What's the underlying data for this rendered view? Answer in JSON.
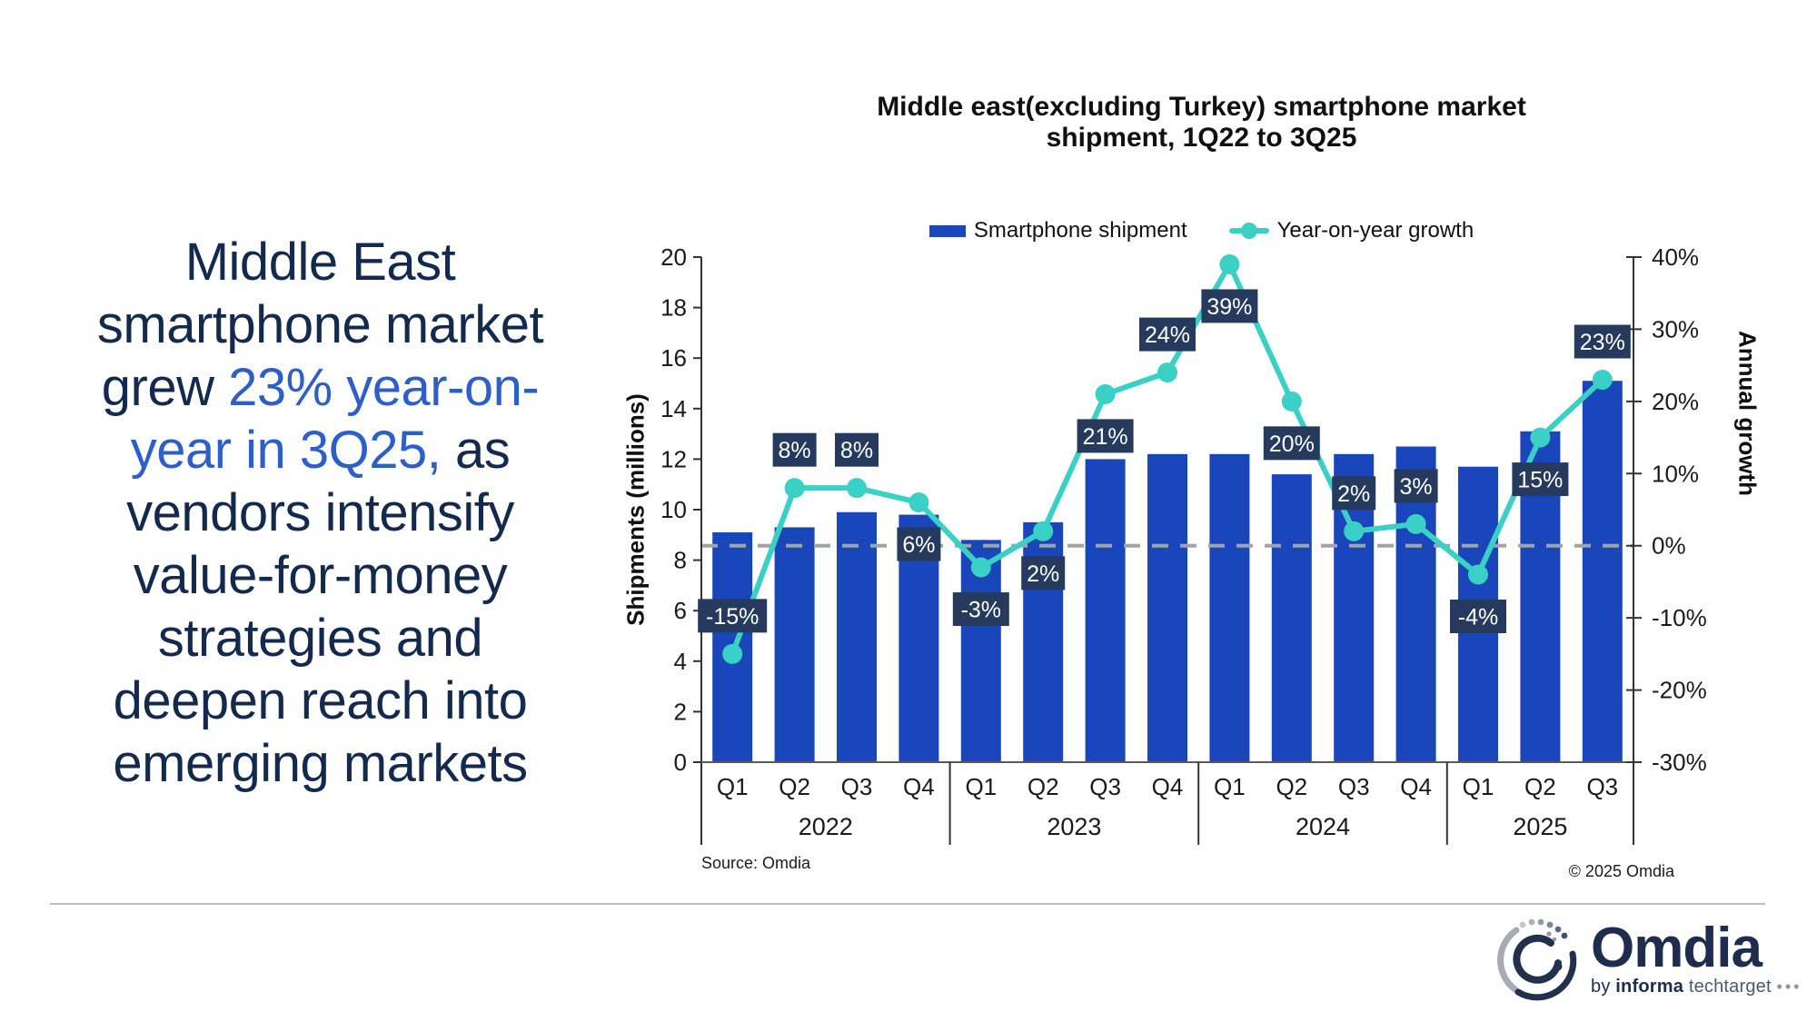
{
  "headline": {
    "lines": [
      {
        "segments": [
          {
            "t": "Middle East",
            "c": "navy"
          }
        ]
      },
      {
        "segments": [
          {
            "t": "smartphone market",
            "c": "navy"
          }
        ]
      },
      {
        "segments": [
          {
            "t": "grew ",
            "c": "navy"
          },
          {
            "t": "23% year-on-",
            "c": "blue"
          }
        ]
      },
      {
        "segments": [
          {
            "t": "year in 3Q25,",
            "c": "blue"
          },
          {
            "t": " as",
            "c": "navy"
          }
        ]
      },
      {
        "segments": [
          {
            "t": "vendors intensify",
            "c": "navy"
          }
        ]
      },
      {
        "segments": [
          {
            "t": "value-for-money",
            "c": "navy"
          }
        ]
      },
      {
        "segments": [
          {
            "t": "strategies and",
            "c": "navy"
          }
        ]
      },
      {
        "segments": [
          {
            "t": "deepen reach into",
            "c": "navy"
          }
        ]
      },
      {
        "segments": [
          {
            "t": "emerging markets",
            "c": "navy"
          }
        ]
      }
    ]
  },
  "chart": {
    "title_line1": "Middle east(excluding Turkey) smartphone market",
    "title_line2": "shipment, 1Q22 to 3Q25",
    "legend": [
      {
        "label": "Smartphone shipment",
        "marker": "bar"
      },
      {
        "label": "Year-on-year growth",
        "marker": "line"
      }
    ],
    "left_axis_title": "Shipments (millions)",
    "right_axis_title": "Annual growth",
    "source": "Source: Omdia",
    "copyright": "© 2025 Omdia"
  },
  "chart_data": {
    "type": "bar+line combo",
    "categories": [
      "Q1",
      "Q2",
      "Q3",
      "Q4",
      "Q1",
      "Q2",
      "Q3",
      "Q4",
      "Q1",
      "Q2",
      "Q3",
      "Q4",
      "Q1",
      "Q2",
      "Q3"
    ],
    "year_groups": [
      {
        "label": "2022",
        "count": 4
      },
      {
        "label": "2023",
        "count": 4
      },
      {
        "label": "2024",
        "count": 4
      },
      {
        "label": "2025",
        "count": 3
      }
    ],
    "series": [
      {
        "name": "Smartphone shipment",
        "type": "bar",
        "axis": "left",
        "values": [
          9.1,
          9.3,
          9.9,
          9.8,
          8.8,
          9.5,
          12.0,
          12.2,
          12.2,
          11.4,
          12.2,
          12.5,
          11.7,
          13.1,
          15.1
        ]
      },
      {
        "name": "Year-on-year growth",
        "type": "line",
        "axis": "right",
        "values_pct": [
          -15,
          8,
          8,
          6,
          -3,
          2,
          21,
          24,
          39,
          20,
          2,
          3,
          -4,
          15,
          23
        ],
        "labels": [
          "-15%",
          "8%",
          "8%",
          "6%",
          "-3%",
          "2%",
          "21%",
          "24%",
          "39%",
          "20%",
          "2%",
          "3%",
          "-4%",
          "15%",
          "23%"
        ],
        "label_positions": [
          "above",
          "above",
          "above",
          "below",
          "below",
          "below",
          "below",
          "above",
          "below",
          "below",
          "above",
          "above",
          "below",
          "below",
          "above"
        ]
      }
    ],
    "left_axis": {
      "title": "Shipments (millions)",
      "min": 0,
      "max": 20,
      "step": 2,
      "ticks": [
        "0",
        "2",
        "4",
        "6",
        "8",
        "10",
        "12",
        "14",
        "16",
        "18",
        "20"
      ]
    },
    "right_axis": {
      "title": "Annual growth",
      "min": -30,
      "max": 40,
      "step": 10,
      "ticks": [
        "40%",
        "30%",
        "20%",
        "10%",
        "0%",
        "-10%",
        "-20%",
        "-30%"
      ]
    },
    "zero_line_dashed": true,
    "legend_position": "top"
  },
  "colors": {
    "bar": "#1a46bc",
    "line": "#3ad0c5",
    "label_box": "#253a5c",
    "label_text": "#ffffff",
    "dashed_zero": "#a3a3a3",
    "axis_line": "#333333",
    "x_axis_line": "#595959",
    "tick_text": "#1a1a1a",
    "headline_navy": "#13294e",
    "headline_blue": "#2d5ec9",
    "brand_navy": "#1e2c4e"
  },
  "footer": {
    "brand": "Omdia",
    "by": "by",
    "informa": "informa",
    "techtarget": "techtarget",
    "dots": "•••"
  }
}
